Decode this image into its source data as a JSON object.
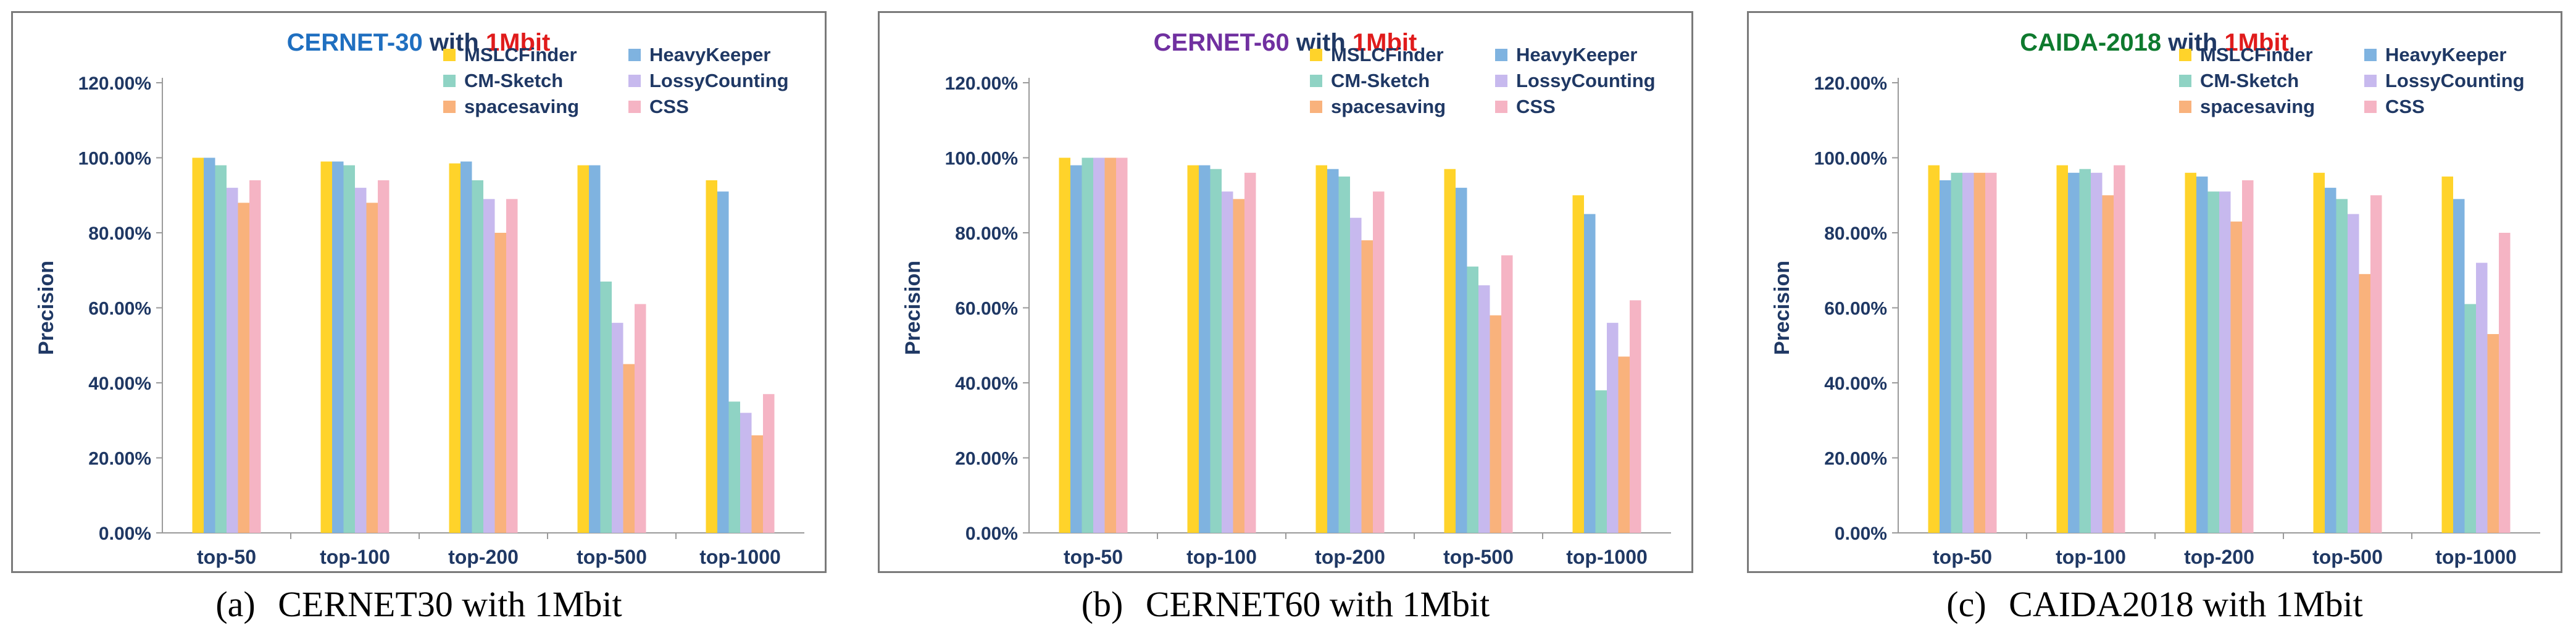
{
  "chart_data": [
    {
      "type": "bar",
      "panel_label": "(a)",
      "caption": "CERNET30 with 1Mbit",
      "title_dataset": "CERNET-30",
      "title_with": "with",
      "title_memory": "1Mbit",
      "colors": {
        "dataset": "#1f6fc0",
        "with": "#1f3864",
        "memory": "#e01b1b"
      },
      "ylabel": "Precision",
      "xlabel": "",
      "ylim": [
        0,
        1.2
      ],
      "yticks": [
        "0.00%",
        "20.00%",
        "40.00%",
        "60.00%",
        "80.00%",
        "100.00%",
        "120.00%"
      ],
      "categories": [
        "top-50",
        "top-100",
        "top-200",
        "top-500",
        "top-1000"
      ],
      "legend_position": "top-right",
      "grid": false,
      "series": [
        {
          "name": "MSLCFinder",
          "color": "#ffd32a",
          "values": [
            1.0,
            0.99,
            0.985,
            0.98,
            0.94
          ]
        },
        {
          "name": "HeavyKeeper",
          "color": "#7fb3e0",
          "values": [
            1.0,
            0.99,
            0.99,
            0.98,
            0.91
          ]
        },
        {
          "name": "CM-Sketch",
          "color": "#8fd3c4",
          "values": [
            0.98,
            0.98,
            0.94,
            0.67,
            0.35
          ]
        },
        {
          "name": "LossyCounting",
          "color": "#c7b9ee",
          "values": [
            0.92,
            0.92,
            0.89,
            0.56,
            0.32
          ]
        },
        {
          "name": "spacesaving",
          "color": "#f9b27c",
          "values": [
            0.88,
            0.88,
            0.8,
            0.45,
            0.26
          ]
        },
        {
          "name": "CSS",
          "color": "#f5b4c4",
          "values": [
            0.94,
            0.94,
            0.89,
            0.61,
            0.37
          ]
        }
      ]
    },
    {
      "type": "bar",
      "panel_label": "(b)",
      "caption": "CERNET60 with 1Mbit",
      "title_dataset": "CERNET-60",
      "title_with": "with",
      "title_memory": "1Mbit",
      "colors": {
        "dataset": "#7030a0",
        "with": "#1f3864",
        "memory": "#e01b1b"
      },
      "ylabel": "Precision",
      "xlabel": "",
      "ylim": [
        0,
        1.2
      ],
      "yticks": [
        "0.00%",
        "20.00%",
        "40.00%",
        "60.00%",
        "80.00%",
        "100.00%",
        "120.00%"
      ],
      "categories": [
        "top-50",
        "top-100",
        "top-200",
        "top-500",
        "top-1000"
      ],
      "legend_position": "top-right",
      "grid": false,
      "series": [
        {
          "name": "MSLCFinder",
          "color": "#ffd32a",
          "values": [
            1.0,
            0.98,
            0.98,
            0.97,
            0.9
          ]
        },
        {
          "name": "HeavyKeeper",
          "color": "#7fb3e0",
          "values": [
            0.98,
            0.98,
            0.97,
            0.92,
            0.85
          ]
        },
        {
          "name": "CM-Sketch",
          "color": "#8fd3c4",
          "values": [
            1.0,
            0.97,
            0.95,
            0.71,
            0.38
          ]
        },
        {
          "name": "LossyCounting",
          "color": "#c7b9ee",
          "values": [
            1.0,
            0.91,
            0.84,
            0.66,
            0.56
          ]
        },
        {
          "name": "spacesaving",
          "color": "#f9b27c",
          "values": [
            1.0,
            0.89,
            0.78,
            0.58,
            0.47
          ]
        },
        {
          "name": "CSS",
          "color": "#f5b4c4",
          "values": [
            1.0,
            0.96,
            0.91,
            0.74,
            0.62
          ]
        }
      ]
    },
    {
      "type": "bar",
      "panel_label": "(c)",
      "caption": "CAIDA2018 with 1Mbit",
      "title_dataset": "CAIDA-2018",
      "title_with": "with",
      "title_memory": "1Mbit",
      "colors": {
        "dataset": "#0e7a2e",
        "with": "#1f3864",
        "memory": "#e01b1b"
      },
      "ylabel": "Precision",
      "xlabel": "",
      "ylim": [
        0,
        1.2
      ],
      "yticks": [
        "0.00%",
        "20.00%",
        "40.00%",
        "60.00%",
        "80.00%",
        "100.00%",
        "120.00%"
      ],
      "categories": [
        "top-50",
        "top-100",
        "top-200",
        "top-500",
        "top-1000"
      ],
      "legend_position": "top-right",
      "grid": false,
      "series": [
        {
          "name": "MSLCFinder",
          "color": "#ffd32a",
          "values": [
            0.98,
            0.98,
            0.96,
            0.96,
            0.95
          ]
        },
        {
          "name": "HeavyKeeper",
          "color": "#7fb3e0",
          "values": [
            0.94,
            0.96,
            0.95,
            0.92,
            0.89
          ]
        },
        {
          "name": "CM-Sketch",
          "color": "#8fd3c4",
          "values": [
            0.96,
            0.97,
            0.91,
            0.89,
            0.61
          ]
        },
        {
          "name": "LossyCounting",
          "color": "#c7b9ee",
          "values": [
            0.96,
            0.96,
            0.91,
            0.85,
            0.72
          ]
        },
        {
          "name": "spacesaving",
          "color": "#f9b27c",
          "values": [
            0.96,
            0.9,
            0.83,
            0.69,
            0.53
          ]
        },
        {
          "name": "CSS",
          "color": "#f5b4c4",
          "values": [
            0.96,
            0.98,
            0.94,
            0.9,
            0.8
          ]
        }
      ]
    }
  ]
}
